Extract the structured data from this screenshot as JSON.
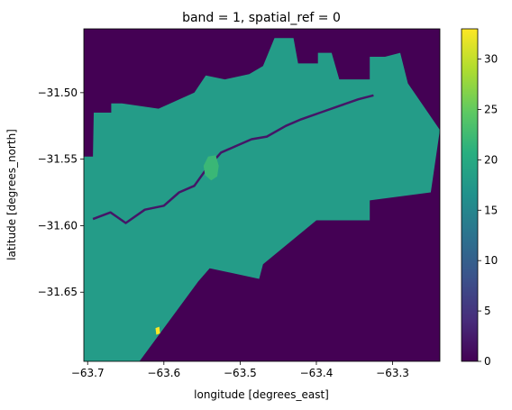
{
  "chart_data": {
    "type": "heatmap",
    "title": "band = 1, spatial_ref = 0",
    "xlabel": "longitude [degrees_east]",
    "ylabel": "latitude [degrees_north]",
    "xlim": [
      -63.705,
      -63.238
    ],
    "ylim": [
      -31.702,
      -31.452
    ],
    "x_ticks": [
      {
        "value": -63.7,
        "label": "−63.7"
      },
      {
        "value": -63.6,
        "label": "−63.6"
      },
      {
        "value": -63.5,
        "label": "−63.5"
      },
      {
        "value": -63.4,
        "label": "−63.4"
      },
      {
        "value": -63.3,
        "label": "−63.3"
      }
    ],
    "y_ticks": [
      {
        "value": -31.5,
        "label": "−31.50"
      },
      {
        "value": -31.55,
        "label": "−31.55"
      },
      {
        "value": -31.6,
        "label": "−31.60"
      },
      {
        "value": -31.65,
        "label": "−31.65"
      }
    ],
    "colorbar": {
      "colormap": "viridis",
      "range": [
        0,
        33
      ],
      "ticks": [
        {
          "value": 0,
          "label": "0"
        },
        {
          "value": 5,
          "label": "5"
        },
        {
          "value": 10,
          "label": "10"
        },
        {
          "value": 15,
          "label": "15"
        },
        {
          "value": 20,
          "label": "20"
        },
        {
          "value": 25,
          "label": "25"
        },
        {
          "value": 30,
          "label": "30"
        }
      ]
    },
    "background_value": 0,
    "regions": [
      {
        "value": 18,
        "polygon": [
          [
            -63.705,
            -31.702
          ],
          [
            -63.705,
            -31.548
          ],
          [
            -63.693,
            -31.548
          ],
          [
            -63.692,
            -31.515
          ],
          [
            -63.669,
            -31.515
          ],
          [
            -63.669,
            -31.508
          ],
          [
            -63.655,
            -31.508
          ],
          [
            -63.607,
            -31.512
          ],
          [
            -63.56,
            -31.5
          ],
          [
            -63.545,
            -31.487
          ],
          [
            -63.52,
            -31.49
          ],
          [
            -63.488,
            -31.486
          ],
          [
            -63.47,
            -31.48
          ],
          [
            -63.455,
            -31.459
          ],
          [
            -63.43,
            -31.459
          ],
          [
            -63.424,
            -31.478
          ],
          [
            -63.398,
            -31.478
          ],
          [
            -63.398,
            -31.47
          ],
          [
            -63.38,
            -31.47
          ],
          [
            -63.37,
            -31.49
          ],
          [
            -63.33,
            -31.49
          ],
          [
            -63.33,
            -31.473
          ],
          [
            -63.31,
            -31.473
          ],
          [
            -63.29,
            -31.47
          ],
          [
            -63.28,
            -31.493
          ],
          [
            -63.238,
            -31.528
          ],
          [
            -63.25,
            -31.575
          ],
          [
            -63.33,
            -31.581
          ],
          [
            -63.33,
            -31.596
          ],
          [
            -63.4,
            -31.596
          ],
          [
            -63.47,
            -31.629
          ],
          [
            -63.475,
            -31.64
          ],
          [
            -63.54,
            -31.632
          ],
          [
            -63.555,
            -31.642
          ],
          [
            -63.632,
            -31.702
          ]
        ]
      }
    ],
    "features": [
      {
        "value": 22,
        "label_hint": "bright patch",
        "polygon": [
          [
            -63.548,
            -31.555
          ],
          [
            -63.542,
            -31.548
          ],
          [
            -63.532,
            -31.547
          ],
          [
            -63.528,
            -31.555
          ],
          [
            -63.53,
            -31.563
          ],
          [
            -63.538,
            -31.566
          ],
          [
            -63.546,
            -31.562
          ]
        ]
      },
      {
        "value": 33,
        "label_hint": "max pixel",
        "polygon": [
          [
            -63.611,
            -31.677
          ],
          [
            -63.606,
            -31.676
          ],
          [
            -63.605,
            -31.681
          ],
          [
            -63.61,
            -31.682
          ]
        ]
      }
    ],
    "river": {
      "value": 2,
      "points": [
        [
          -63.693,
          -31.595
        ],
        [
          -63.67,
          -31.59
        ],
        [
          -63.65,
          -31.598
        ],
        [
          -63.625,
          -31.588
        ],
        [
          -63.6,
          -31.585
        ],
        [
          -63.58,
          -31.575
        ],
        [
          -63.56,
          -31.57
        ],
        [
          -63.545,
          -31.558
        ],
        [
          -63.525,
          -31.545
        ],
        [
          -63.505,
          -31.54
        ],
        [
          -63.485,
          -31.535
        ],
        [
          -63.465,
          -31.533
        ],
        [
          -63.44,
          -31.525
        ],
        [
          -63.42,
          -31.52
        ],
        [
          -63.395,
          -31.515
        ],
        [
          -63.37,
          -31.51
        ],
        [
          -63.345,
          -31.505
        ],
        [
          -63.325,
          -31.502
        ]
      ]
    }
  }
}
